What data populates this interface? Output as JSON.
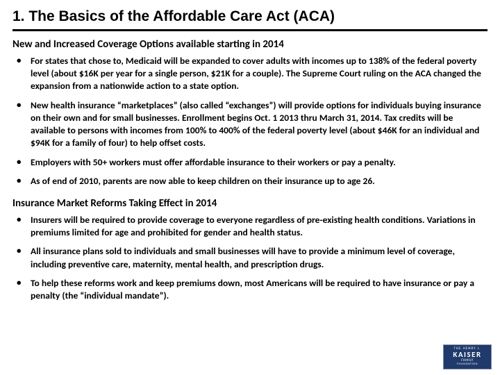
{
  "title": "1. The Basics of the Affordable Care Act (ACA)",
  "sections": [
    {
      "heading": "New and Increased Coverage Options available starting in 2014",
      "bullets": [
        "For states that chose to, Medicaid will be expanded to cover adults with incomes up to 138% of the federal poverty level (about $16K per year for a single person, $21K for a couple). The Supreme Court ruling on the ACA changed the expansion from a nationwide action to a state option.",
        "New health insurance “marketplaces” (also called “exchanges”) will provide options for individuals buying insurance on their own and for small businesses. Enrollment begins Oct. 1 2013 thru March 31, 2014. Tax credits will be available to persons with incomes from 100% to 400% of the federal poverty level (about $46K for an individual and $94K for a family of four) to help offset costs.",
        "Employers with 50+ workers must offer affordable insurance to their workers or pay a penalty.",
        "As of end of 2010, parents are now able to keep children on their insurance up to age 26."
      ]
    },
    {
      "heading": "Insurance Market Reforms Taking Effect in 2014",
      "bullets": [
        "Insurers will be required to provide coverage to everyone regardless of pre-existing health conditions. Variations in premiums limited for age and prohibited for gender and health status.",
        "All insurance plans sold to individuals and small businesses will have to provide a minimum level of coverage, including preventive care, maternity, mental health, and prescription drugs.",
        "To help these reforms work and keep premiums down, most Americans will be required to have insurance or pay a penalty (the “individual mandate”)."
      ]
    }
  ],
  "logo": {
    "line1": "THE HENRY J.",
    "line2": "KAISER",
    "line3": "FAMILY",
    "line4": "FOUNDATION",
    "bg_color": "#1f3a6b"
  },
  "colors": {
    "text": "#000000",
    "background": "#ffffff",
    "rule": "#000000"
  }
}
